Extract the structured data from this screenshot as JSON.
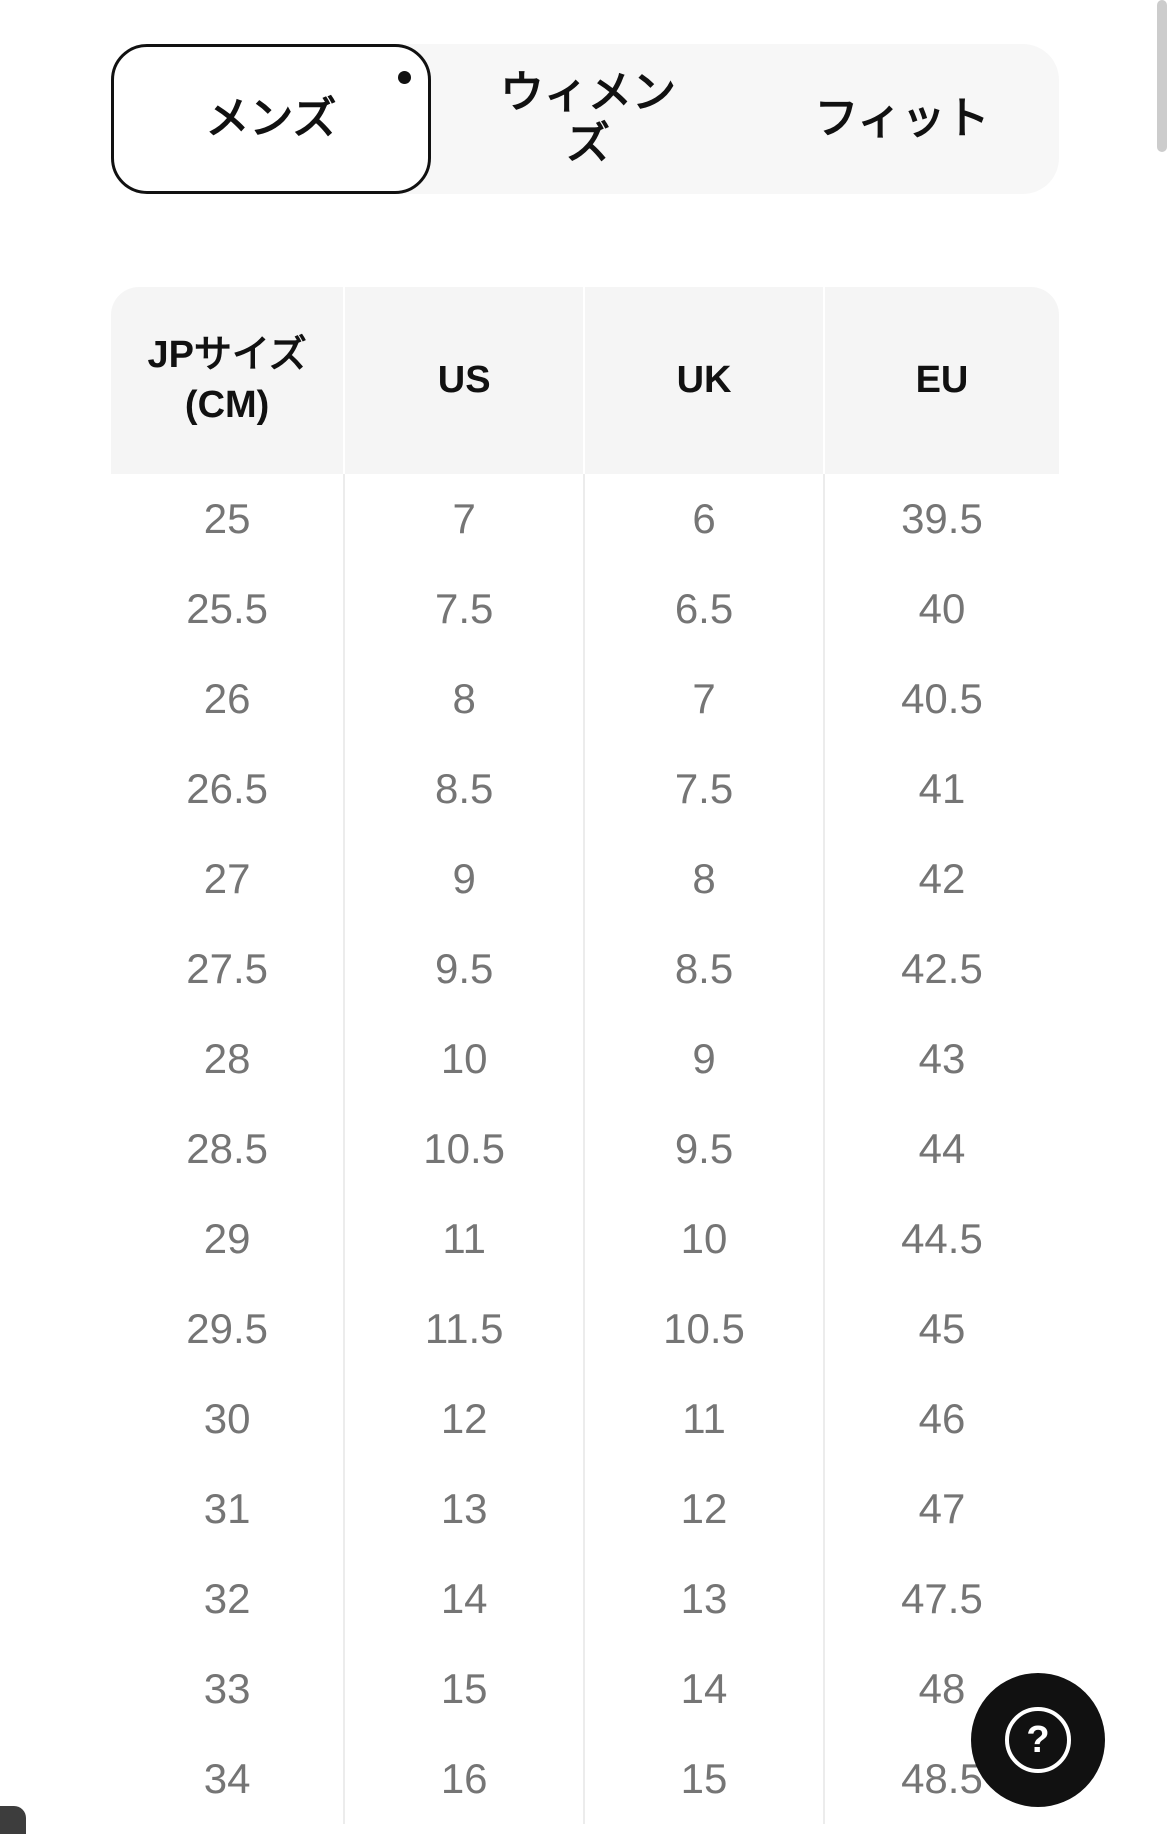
{
  "tabs": [
    {
      "label": "メンズ",
      "selected": true
    },
    {
      "label": "ウィメンズ",
      "selected": false
    },
    {
      "label": "フィット",
      "selected": false
    }
  ],
  "table": {
    "col_headers": [
      {
        "line1": "JPサイズ",
        "line2": "(CM)"
      },
      {
        "line1": "US"
      },
      {
        "line1": "UK"
      },
      {
        "line1": "EU"
      }
    ],
    "rows": [
      [
        "25",
        "7",
        "6",
        "39.5"
      ],
      [
        "25.5",
        "7.5",
        "6.5",
        "40"
      ],
      [
        "26",
        "8",
        "7",
        "40.5"
      ],
      [
        "26.5",
        "8.5",
        "7.5",
        "41"
      ],
      [
        "27",
        "9",
        "8",
        "42"
      ],
      [
        "27.5",
        "9.5",
        "8.5",
        "42.5"
      ],
      [
        "28",
        "10",
        "9",
        "43"
      ],
      [
        "28.5",
        "10.5",
        "9.5",
        "44"
      ],
      [
        "29",
        "11",
        "10",
        "44.5"
      ],
      [
        "29.5",
        "11.5",
        "10.5",
        "45"
      ],
      [
        "30",
        "12",
        "11",
        "46"
      ],
      [
        "31",
        "13",
        "12",
        "47"
      ],
      [
        "32",
        "14",
        "13",
        "47.5"
      ],
      [
        "33",
        "15",
        "14",
        "48"
      ],
      [
        "34",
        "16",
        "15",
        "48.5"
      ]
    ]
  },
  "help_button": {
    "glyph": "?"
  },
  "colors": {
    "tab_bar_bg": "#f7f7f7",
    "selected_tab_bg": "#ffffff",
    "selected_tab_border": "#111111",
    "header_bg": "#f5f5f5",
    "header_text": "#111111",
    "body_text": "#757575",
    "divider": "#ececec",
    "help_button_bg": "#111111",
    "help_button_fg": "#ffffff"
  }
}
